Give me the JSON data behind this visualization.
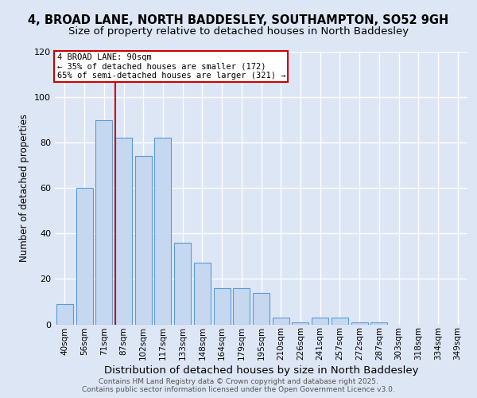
{
  "title1": "4, BROAD LANE, NORTH BADDESLEY, SOUTHAMPTON, SO52 9GH",
  "title2": "Size of property relative to detached houses in North Baddesley",
  "xlabel": "Distribution of detached houses by size in North Baddesley",
  "ylabel": "Number of detached properties",
  "footnote": "Contains HM Land Registry data © Crown copyright and database right 2025.\nContains public sector information licensed under the Open Government Licence v3.0.",
  "categories": [
    "40sqm",
    "56sqm",
    "71sqm",
    "87sqm",
    "102sqm",
    "117sqm",
    "133sqm",
    "148sqm",
    "164sqm",
    "179sqm",
    "195sqm",
    "210sqm",
    "226sqm",
    "241sqm",
    "257sqm",
    "272sqm",
    "287sqm",
    "303sqm",
    "318sqm",
    "334sqm",
    "349sqm"
  ],
  "values": [
    9,
    60,
    90,
    82,
    74,
    82,
    36,
    27,
    16,
    16,
    14,
    3,
    1,
    3,
    3,
    1,
    1,
    0,
    0,
    0,
    0
  ],
  "bar_color": "#c5d8f0",
  "bar_edge_color": "#5b9bd5",
  "vline_index": 3,
  "vline_color": "#cc0000",
  "annotation_title": "4 BROAD LANE: 90sqm",
  "annotation_line1": "← 35% of detached houses are smaller (172)",
  "annotation_line2": "65% of semi-detached houses are larger (321) →",
  "annotation_box_facecolor": "#ffffff",
  "annotation_box_edgecolor": "#cc0000",
  "background_color": "#dde6f5",
  "ylim": [
    0,
    120
  ],
  "yticks": [
    0,
    20,
    40,
    60,
    80,
    100,
    120
  ],
  "title1_fontsize": 10.5,
  "title2_fontsize": 9.5,
  "xlabel_fontsize": 9.5,
  "ylabel_fontsize": 8.5,
  "tick_fontsize": 7.5,
  "footnote_fontsize": 6.5,
  "annot_fontsize": 7.5
}
